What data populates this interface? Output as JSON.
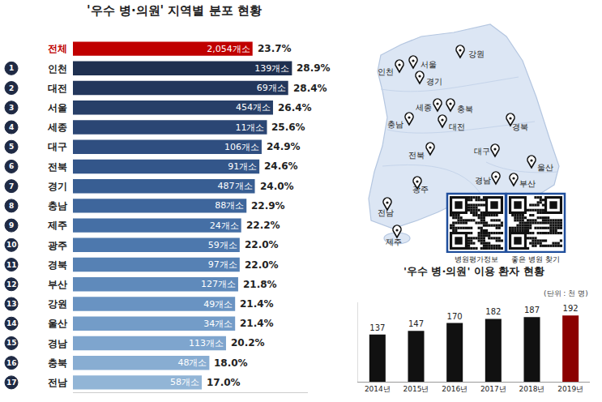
{
  "chart_data": [
    {
      "type": "bar",
      "title": "'우수 병·의원' 지역별 분포 현황",
      "orientation": "horizontal",
      "categories": [
        "전체",
        "인천",
        "대전",
        "서울",
        "세종",
        "대구",
        "전북",
        "경기",
        "충남",
        "제주",
        "광주",
        "경북",
        "부산",
        "강원",
        "울산",
        "경남",
        "충북",
        "전남"
      ],
      "ranks": [
        null,
        1,
        2,
        3,
        4,
        5,
        6,
        7,
        8,
        9,
        10,
        11,
        12,
        13,
        14,
        15,
        16,
        17
      ],
      "values": [
        23.7,
        28.9,
        28.4,
        26.4,
        25.6,
        24.9,
        24.6,
        24.0,
        22.9,
        22.2,
        22.0,
        22.0,
        21.8,
        21.4,
        21.4,
        20.2,
        18.0,
        17.0
      ],
      "value_labels": [
        "23.7%",
        "28.9%",
        "28.4%",
        "26.4%",
        "25.6%",
        "24.9%",
        "24.6%",
        "24.0%",
        "22.9%",
        "22.2%",
        "22.0%",
        "22.0%",
        "21.8%",
        "21.4%",
        "21.4%",
        "20.2%",
        "18.0%",
        "17.0%"
      ],
      "count_labels": [
        "2,054개소",
        "139개소",
        "69개소",
        "454개소",
        "11개소",
        "106개소",
        "91개소",
        "487개소",
        "88개소",
        "24개소",
        "59개소",
        "97개소",
        "127개소",
        "49개소",
        "34개소",
        "113개소",
        "48개소",
        "58개소"
      ],
      "colors": [
        "#c00000",
        "#1f3050",
        "#23375c",
        "#273f68",
        "#2b4674",
        "#2f4e80",
        "#33568a",
        "#385e93",
        "#3e669c",
        "#456fa5",
        "#4d78ad",
        "#5681b4",
        "#5f8abb",
        "#6993c2",
        "#739cc8",
        "#7ea5ce",
        "#88add2",
        "#92b5d6"
      ],
      "xlim": [
        0,
        31
      ],
      "data_labels": true,
      "tick_labels": "y"
    },
    {
      "type": "bar",
      "title": "'우수 병·의원' 이용 환자 현황",
      "subtitle": "(단위 : 천 명)",
      "categories": [
        "2014년",
        "2015년",
        "2016년",
        "2017년",
        "2018년",
        "2019년"
      ],
      "values": [
        137,
        147,
        170,
        182,
        187,
        192
      ],
      "colors": [
        "#111111",
        "#111111",
        "#111111",
        "#111111",
        "#111111",
        "#8b0000"
      ],
      "ylim": [
        0,
        230
      ],
      "data_labels": true,
      "tick_labels": "x"
    }
  ],
  "map": {
    "labels": [
      "강원",
      "서울",
      "인천",
      "경기",
      "세종",
      "충북",
      "충남",
      "대전",
      "경북",
      "전북",
      "대구",
      "울산",
      "경남",
      "부산",
      "광주",
      "전남",
      "제주"
    ],
    "qr_captions": [
      "병원평가정보",
      "좋은 병원 찾기"
    ]
  }
}
